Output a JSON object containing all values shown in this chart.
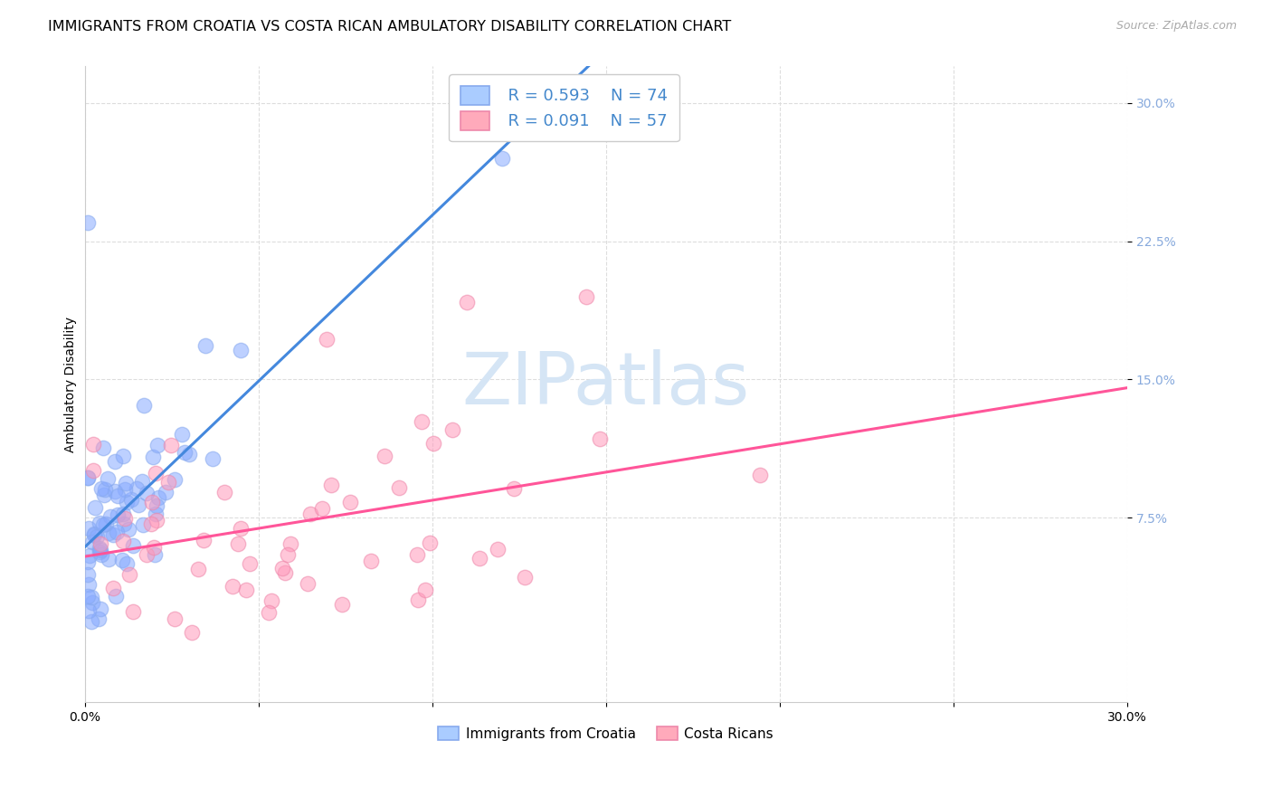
{
  "title": "IMMIGRANTS FROM CROATIA VS COSTA RICAN AMBULATORY DISABILITY CORRELATION CHART",
  "source": "Source: ZipAtlas.com",
  "ylabel": "Ambulatory Disability",
  "xmin": 0.0,
  "xmax": 0.3,
  "ymin": -0.025,
  "ymax": 0.32,
  "ytick_vals": [
    0.075,
    0.15,
    0.225,
    0.3
  ],
  "ytick_labels": [
    "7.5%",
    "15.0%",
    "22.5%",
    "30.0%"
  ],
  "xtick_vals": [
    0.0,
    0.05,
    0.1,
    0.15,
    0.2,
    0.25,
    0.3
  ],
  "xtick_labels": [
    "0.0%",
    "",
    "",
    "",
    "",
    "",
    "30.0%"
  ],
  "legend_r1": "R = 0.593",
  "legend_n1": "N = 74",
  "legend_r2": "R = 0.091",
  "legend_n2": "N = 57",
  "legend1_label": "Immigrants from Croatia",
  "legend2_label": "Costa Ricans",
  "color_blue_fill": "#AACCFF",
  "color_blue_edge": "#88AAEE",
  "color_pink_fill": "#FFAABB",
  "color_pink_edge": "#EE88AA",
  "color_blue_dot": "#88AAFF",
  "color_pink_dot": "#FF99BB",
  "color_blue_line": "#4488DD",
  "color_pink_line": "#FF5599",
  "color_blue_text": "#4488CC",
  "color_tick_right": "#88AADD",
  "watermark": "ZIPatlas",
  "watermark_color": "#D5E5F5",
  "title_fontsize": 11.5,
  "source_fontsize": 9,
  "axis_label_fontsize": 10,
  "tick_fontsize": 10,
  "watermark_fontsize": 58,
  "background_color": "#FFFFFF",
  "grid_color": "#DDDDDD",
  "seed_croatia": 10,
  "seed_costarica": 20,
  "n_croatia": 74,
  "n_costarica": 57
}
